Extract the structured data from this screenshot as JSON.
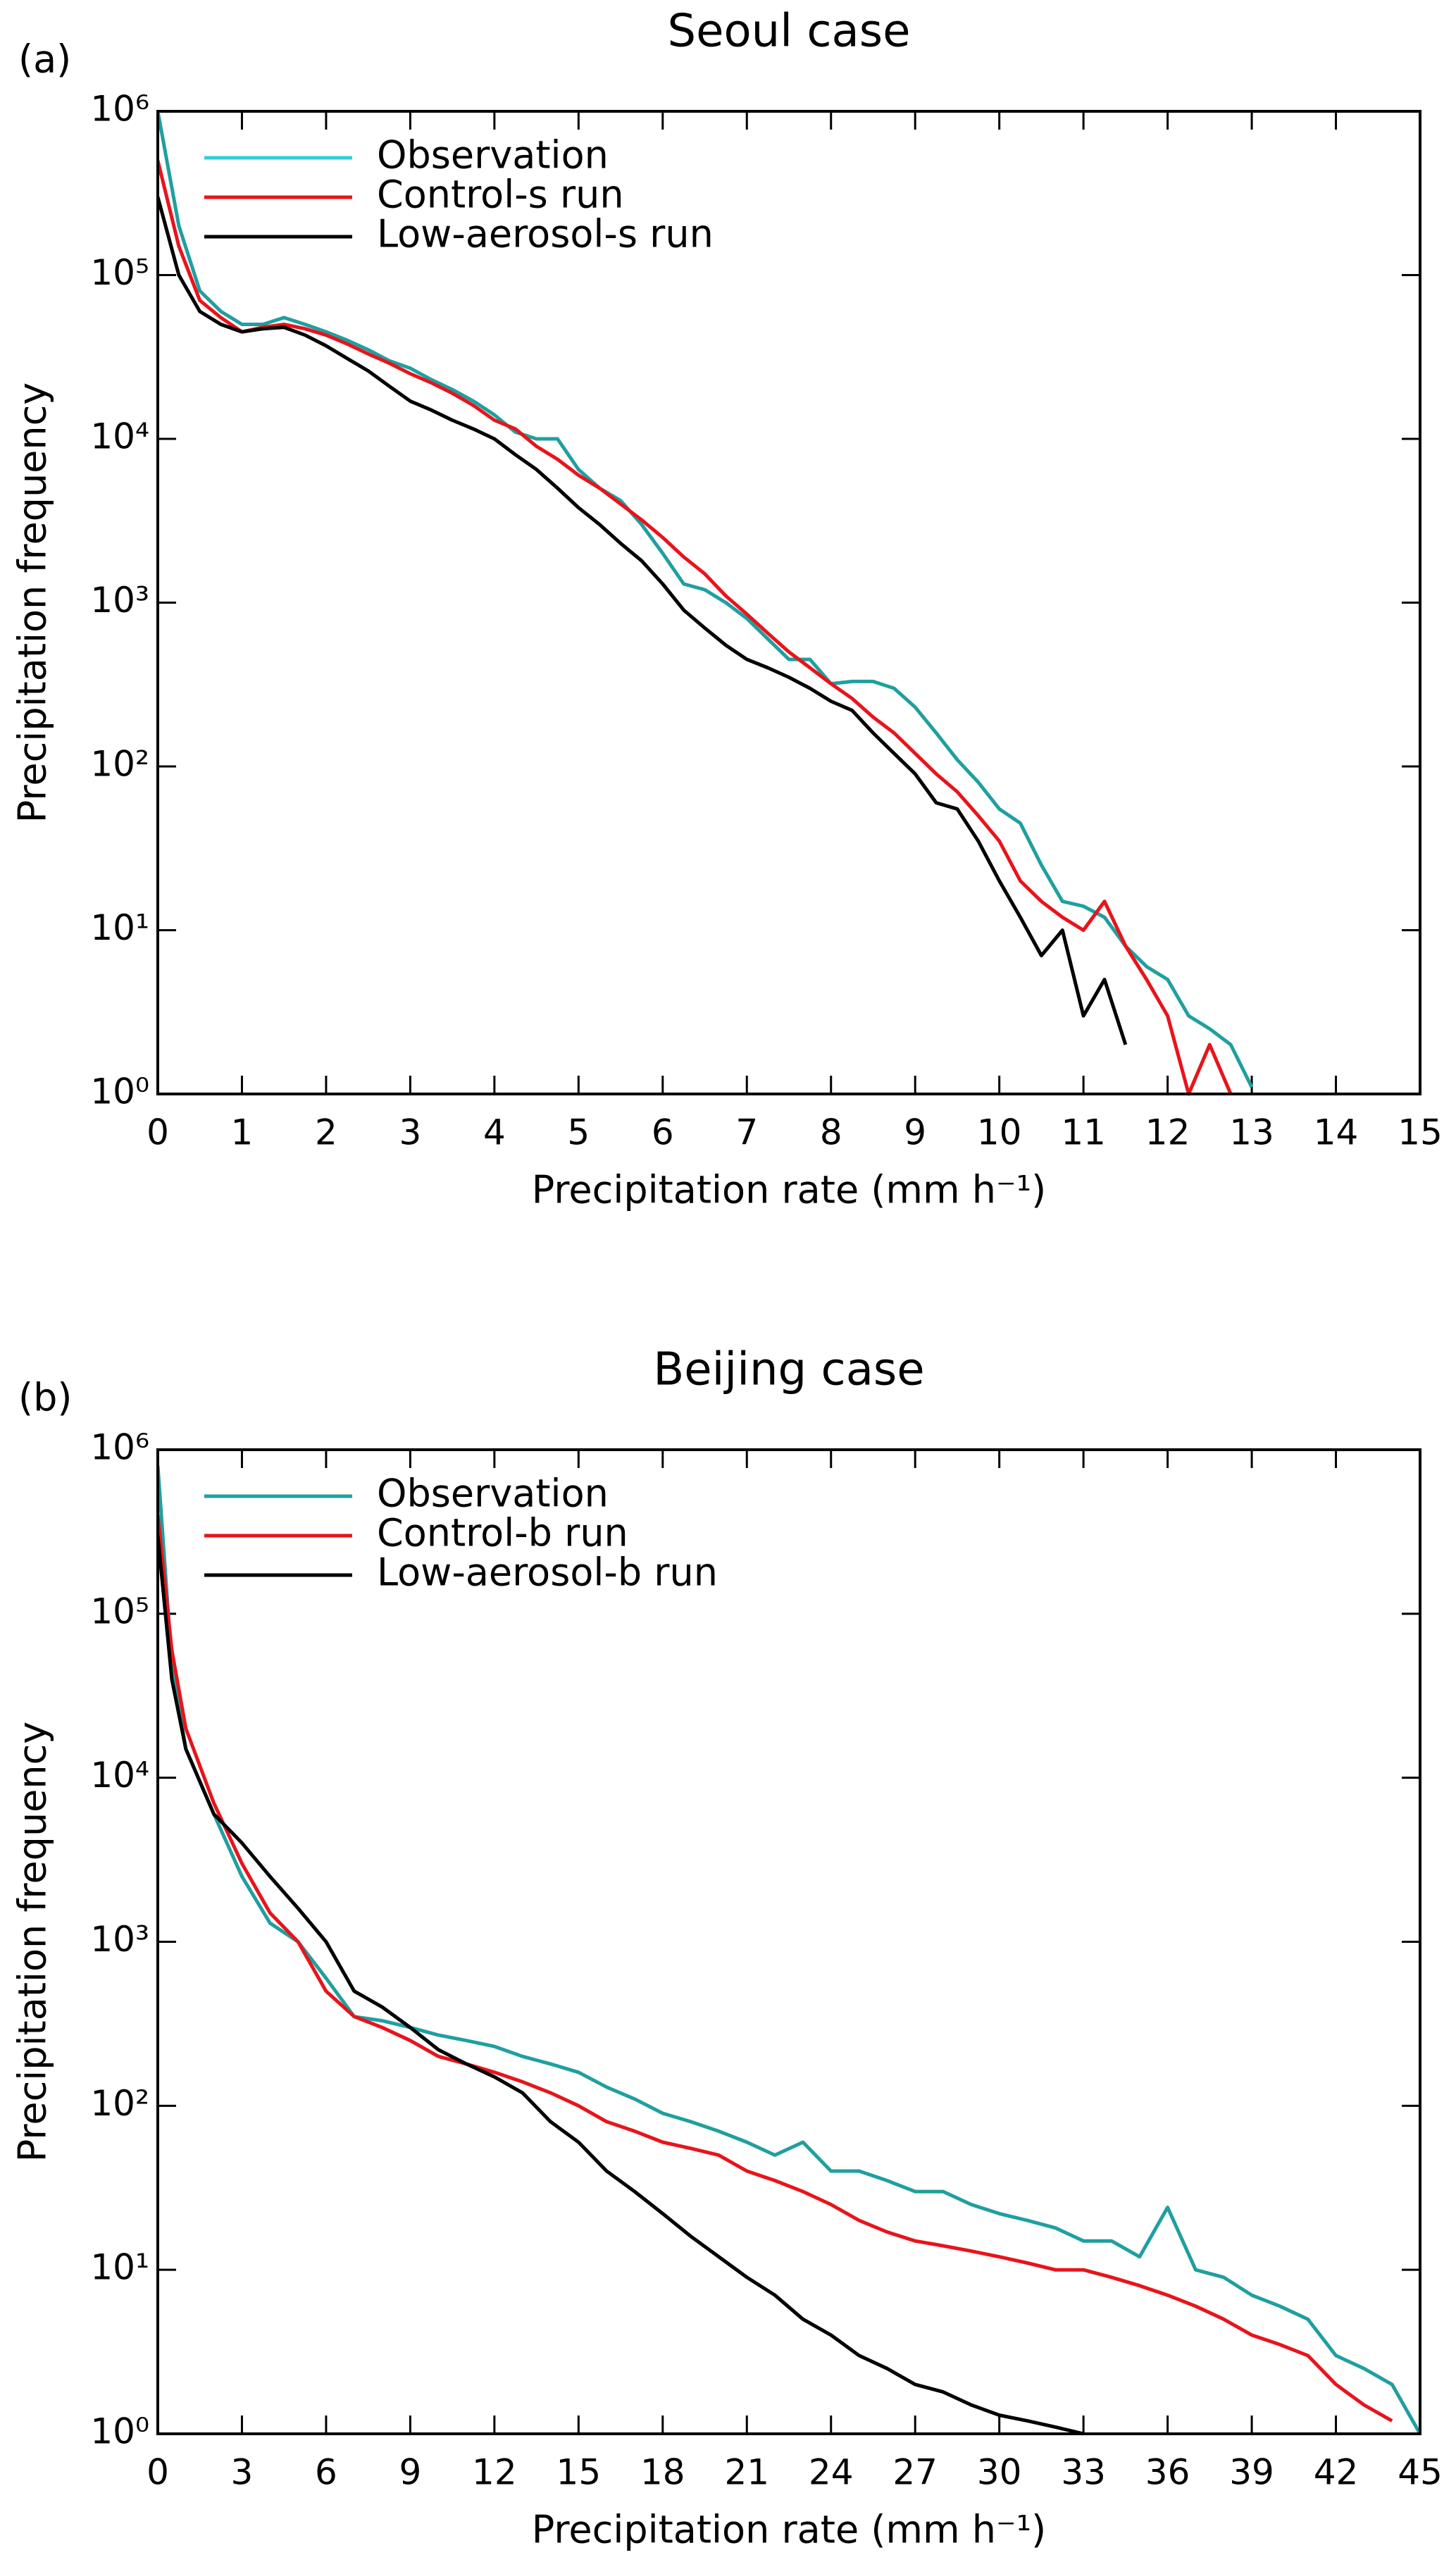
{
  "chart_data": [
    {
      "type": "line",
      "panel_label": "(a)",
      "title": "Seoul case",
      "x_label": "Precipitation rate (mm h⁻¹)",
      "y_label": "Precipitation frequency",
      "log_y": true,
      "legend": "upper left",
      "xlim": [
        0,
        15
      ],
      "xticks": [
        0,
        1,
        2,
        3,
        4,
        5,
        6,
        7,
        8,
        9,
        10,
        11,
        12,
        13,
        14,
        15
      ],
      "ylim": [
        1,
        1000000
      ],
      "yticks": [
        {
          "value": 1,
          "label": "10⁰"
        },
        {
          "value": 10,
          "label": "10¹"
        },
        {
          "value": 100,
          "label": "10²"
        },
        {
          "value": 1000,
          "label": "10³"
        },
        {
          "value": 10000,
          "label": "10⁴"
        },
        {
          "value": 100000,
          "label": "10⁵"
        },
        {
          "value": 1000000,
          "label": "10⁶"
        }
      ],
      "x": [
        0,
        0.25,
        0.5,
        0.75,
        1,
        1.25,
        1.5,
        1.75,
        2,
        2.25,
        2.5,
        2.75,
        3,
        3.25,
        3.5,
        3.75,
        4,
        4.25,
        4.5,
        4.75,
        5,
        5.25,
        5.5,
        5.75,
        6,
        6.25,
        6.5,
        6.75,
        7,
        7.25,
        7.5,
        7.75,
        8,
        8.25,
        8.5,
        8.75,
        9,
        9.25,
        9.5,
        9.75,
        10,
        10.25,
        10.5,
        10.75,
        11,
        11.25,
        11.5,
        11.75,
        12,
        12.25,
        12.5,
        12.75,
        13
      ],
      "series": [
        {
          "name": "Observation",
          "color": "#1f9fa0",
          "legend_color": "#33ccdd",
          "values": [
            1000000,
            200000,
            80000,
            60000,
            50000,
            50000,
            55000,
            50000,
            45000,
            40000,
            35000,
            30000,
            27000,
            23000,
            20000,
            17000,
            14000,
            11000,
            10000,
            10000,
            6500,
            5000,
            4200,
            3000,
            2000,
            1300,
            1200,
            1000,
            800,
            600,
            450,
            450,
            320,
            330,
            330,
            300,
            230,
            160,
            110,
            80,
            55,
            45,
            25,
            15,
            14,
            12,
            8,
            6,
            5,
            3,
            2.5,
            2,
            1.1
          ]
        },
        {
          "name": "Control-s run",
          "color": "#e8141b",
          "values": [
            500000,
            150000,
            70000,
            55000,
            45000,
            48000,
            50000,
            47000,
            43000,
            38000,
            33000,
            29000,
            25000,
            22000,
            19000,
            16000,
            13000,
            11500,
            9000,
            7500,
            6000,
            5000,
            4000,
            3200,
            2500,
            1900,
            1500,
            1100,
            850,
            650,
            500,
            400,
            320,
            260,
            200,
            160,
            120,
            90,
            70,
            50,
            35,
            20,
            15,
            12,
            10,
            15,
            8,
            5,
            3,
            1,
            2,
            1,
            null
          ]
        },
        {
          "name": "Low-aerosol-s run",
          "color": "#000000",
          "values": [
            300000,
            100000,
            60000,
            50000,
            45000,
            47000,
            48000,
            43000,
            37000,
            31000,
            26000,
            21000,
            17000,
            15000,
            13000,
            11500,
            10000,
            8000,
            6500,
            5000,
            3800,
            3000,
            2300,
            1800,
            1300,
            900,
            700,
            550,
            450,
            400,
            350,
            300,
            250,
            220,
            160,
            120,
            90,
            60,
            55,
            35,
            20,
            12,
            7,
            10,
            3,
            5,
            2,
            null,
            null,
            null,
            null,
            null,
            null
          ]
        }
      ]
    },
    {
      "type": "line",
      "panel_label": "(b)",
      "title": "Beijing case",
      "x_label": "Precipitation rate (mm h⁻¹)",
      "y_label": "Precipitation frequency",
      "log_y": true,
      "legend": "upper left",
      "xlim": [
        0,
        45
      ],
      "xticks": [
        0,
        3,
        6,
        9,
        12,
        15,
        18,
        21,
        24,
        27,
        30,
        33,
        36,
        39,
        42,
        45
      ],
      "ylim": [
        1,
        1000000
      ],
      "yticks": [
        {
          "value": 1,
          "label": "10⁰"
        },
        {
          "value": 10,
          "label": "10¹"
        },
        {
          "value": 100,
          "label": "10²"
        },
        {
          "value": 1000,
          "label": "10³"
        },
        {
          "value": 10000,
          "label": "10⁴"
        },
        {
          "value": 100000,
          "label": "10⁵"
        },
        {
          "value": 1000000,
          "label": "10⁶"
        }
      ],
      "x": [
        0,
        0.5,
        1,
        2,
        3,
        4,
        5,
        6,
        7,
        8,
        9,
        10,
        11,
        12,
        13,
        14,
        15,
        16,
        17,
        18,
        19,
        20,
        21,
        22,
        23,
        24,
        25,
        26,
        27,
        28,
        29,
        30,
        31,
        32,
        33,
        34,
        35,
        36,
        37,
        38,
        39,
        40,
        41,
        42,
        43,
        44,
        45
      ],
      "series": [
        {
          "name": "Observation",
          "color": "#1f9fa0",
          "values": [
            800000,
            50000,
            15000,
            6000,
            2500,
            1300,
            1000,
            600,
            350,
            330,
            300,
            270,
            250,
            230,
            200,
            180,
            160,
            130,
            110,
            90,
            80,
            70,
            60,
            50,
            60,
            40,
            40,
            35,
            30,
            30,
            25,
            22,
            20,
            18,
            15,
            15,
            12,
            24,
            10,
            9,
            7,
            6,
            5,
            3,
            2.5,
            2,
            1
          ]
        },
        {
          "name": "Control-b run",
          "color": "#e8141b",
          "values": [
            400000,
            60000,
            20000,
            7000,
            3000,
            1500,
            1000,
            500,
            350,
            300,
            250,
            200,
            180,
            160,
            140,
            120,
            100,
            80,
            70,
            60,
            55,
            50,
            40,
            35,
            30,
            25,
            20,
            17,
            15,
            14,
            13,
            12,
            11,
            10,
            10,
            9,
            8,
            7,
            6,
            5,
            4,
            3.5,
            3,
            2,
            1.5,
            1.2,
            null
          ]
        },
        {
          "name": "Low-aerosol-b run",
          "color": "#000000",
          "values": [
            300000,
            40000,
            15000,
            6000,
            4000,
            2500,
            1600,
            1000,
            500,
            400,
            300,
            220,
            180,
            150,
            120,
            80,
            60,
            40,
            30,
            22,
            16,
            12,
            9,
            7,
            5,
            4,
            3,
            2.5,
            2,
            1.8,
            1.5,
            1.3,
            1.2,
            1.1,
            1,
            null,
            null,
            null,
            null,
            null,
            null,
            null,
            null,
            null,
            null,
            null,
            null
          ]
        }
      ]
    }
  ]
}
